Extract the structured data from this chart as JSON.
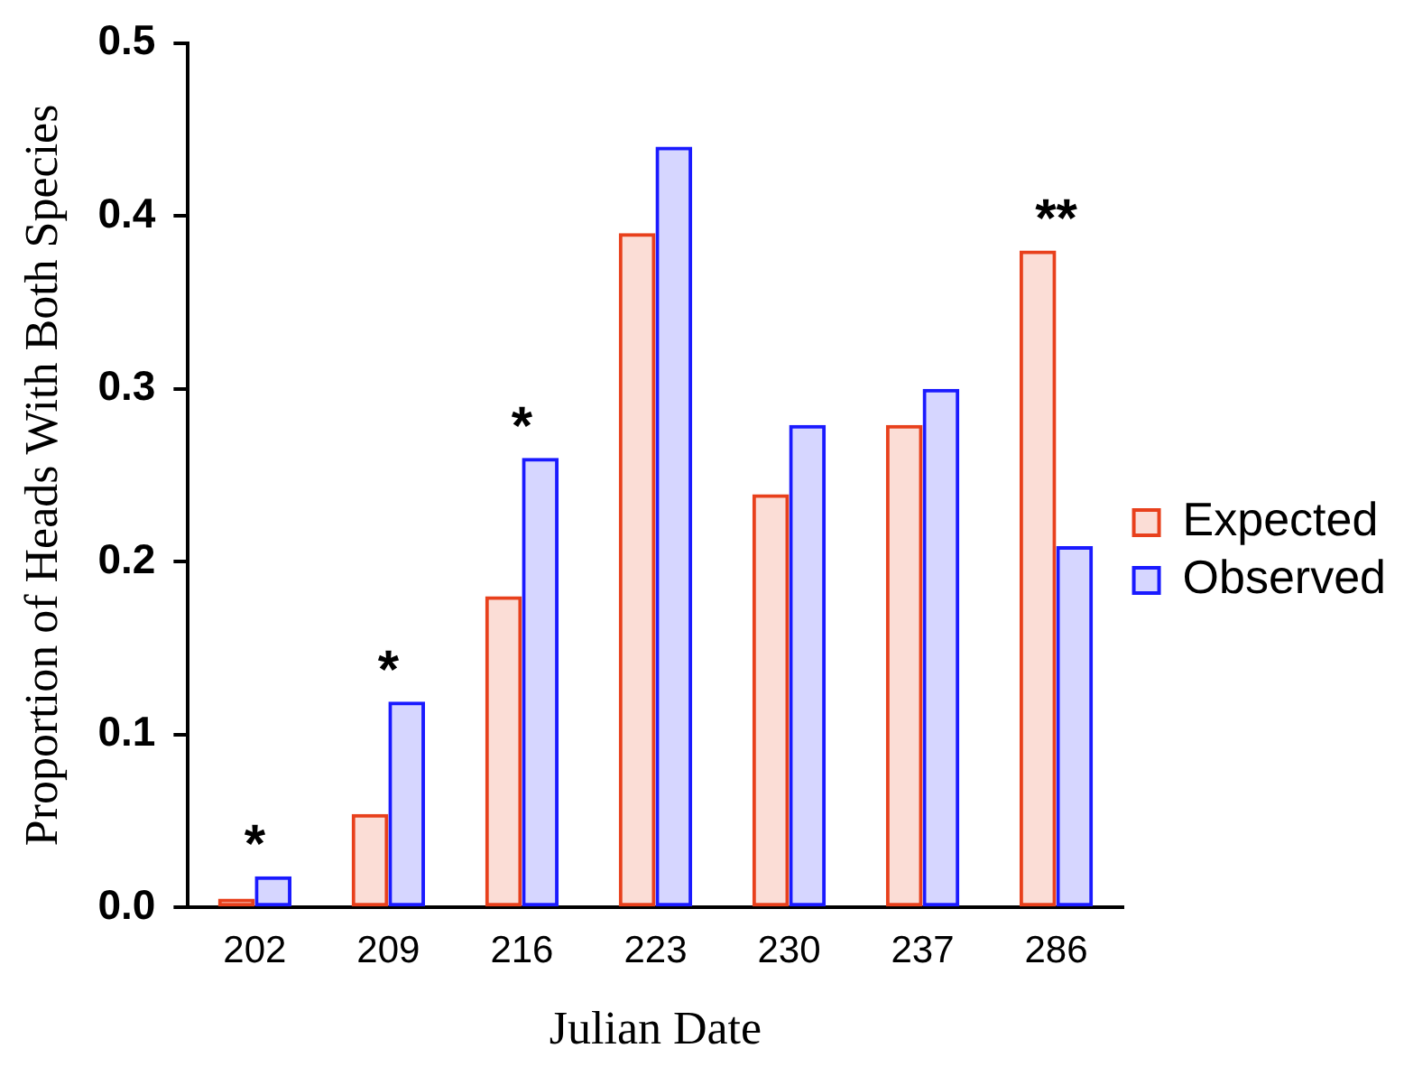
{
  "chart_data": {
    "type": "bar",
    "xlabel": "Julian Date",
    "ylabel": "Proportion of Heads With Both Species",
    "categories": [
      "202",
      "209",
      "216",
      "223",
      "230",
      "237",
      "286"
    ],
    "series": [
      {
        "name": "Expected",
        "color": "#e8401c",
        "values": [
          0.005,
          0.054,
          0.18,
          0.39,
          0.239,
          0.279,
          0.38
        ]
      },
      {
        "name": "Observed",
        "color": "#1a1aff",
        "values": [
          0.018,
          0.119,
          0.26,
          0.44,
          0.279,
          0.3,
          0.209
        ]
      }
    ],
    "ylim": [
      0,
      0.5
    ],
    "yticks": [
      {
        "value": 0,
        "label": "0.0"
      },
      0.1,
      0.2,
      0.3,
      0.4,
      0.5
    ],
    "grid": false,
    "legend": "right",
    "annotations": [
      {
        "text": "*",
        "x": "202",
        "y": 0.018
      },
      {
        "text": "*",
        "x": "209",
        "y": 0.119
      },
      {
        "text": "*",
        "x": "216",
        "y": 0.26
      },
      {
        "text": "**",
        "x": "286",
        "y": 0.38
      }
    ]
  }
}
